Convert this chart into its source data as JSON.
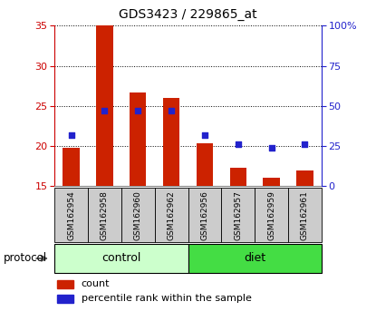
{
  "title": "GDS3423 / 229865_at",
  "samples": [
    "GSM162954",
    "GSM162958",
    "GSM162960",
    "GSM162962",
    "GSM162956",
    "GSM162957",
    "GSM162959",
    "GSM162961"
  ],
  "bar_bottom": 15,
  "bar_tops": [
    19.8,
    35.0,
    26.7,
    26.0,
    20.3,
    17.3,
    16.1,
    17.0
  ],
  "percentile_values_pct": [
    32,
    47,
    47,
    47,
    32,
    26,
    24,
    26
  ],
  "ylim_left": [
    15,
    35
  ],
  "ylim_right": [
    0,
    100
  ],
  "yticks_left": [
    15,
    20,
    25,
    30,
    35
  ],
  "yticks_right": [
    0,
    25,
    50,
    75,
    100
  ],
  "left_axis_color": "#cc0000",
  "right_axis_color": "#2222cc",
  "bar_color": "#cc2200",
  "dot_color": "#2222cc",
  "grid_color": "#000000",
  "control_bg": "#ccffcc",
  "diet_bg": "#44dd44",
  "sample_bg": "#cccccc",
  "legend_bar_label": "count",
  "legend_dot_label": "percentile rank within the sample",
  "protocol_label": "protocol",
  "control_group": [
    0,
    1,
    2,
    3
  ],
  "diet_group": [
    4,
    5,
    6,
    7
  ]
}
